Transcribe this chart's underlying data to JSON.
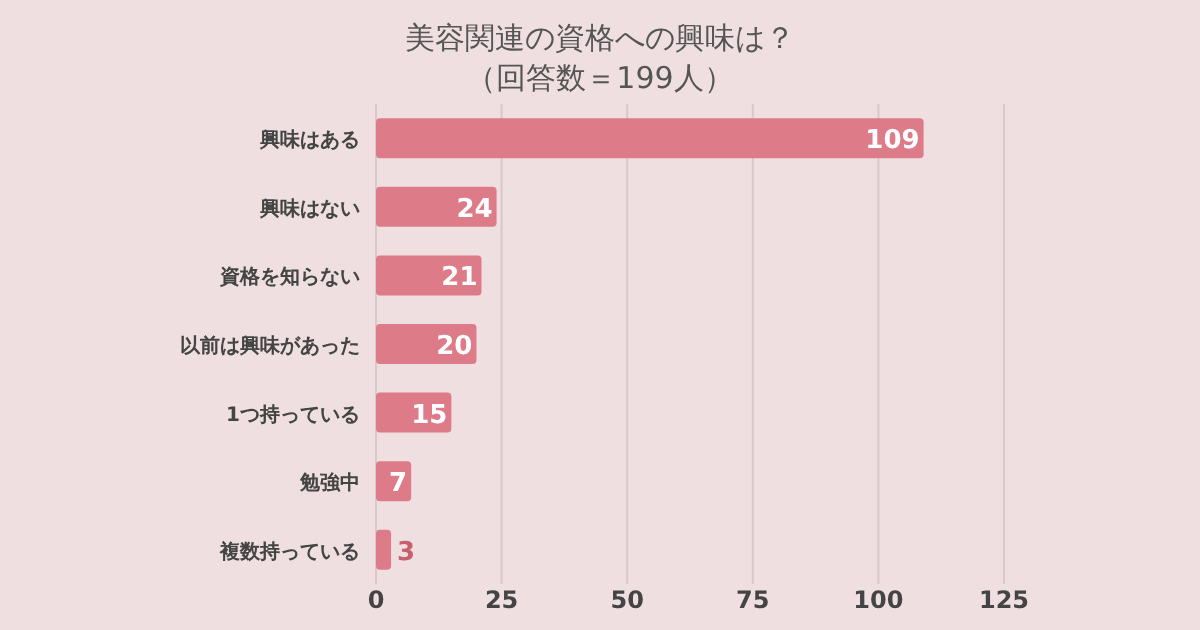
{
  "chart_data": {
    "type": "bar",
    "orientation": "horizontal",
    "title": "美容関連の資格への興味は？",
    "subtitle": "（回答数＝199人）",
    "categories": [
      "興味はある",
      "興味はない",
      "資格を知らない",
      "以前は興味があった",
      "1つ持っている",
      "勉強中",
      "複数持っている"
    ],
    "values": [
      109,
      24,
      21,
      20,
      15,
      7,
      3
    ],
    "color": "#dd7b88",
    "xlim": [
      0,
      125
    ],
    "xticks": [
      0,
      25,
      50,
      75,
      100,
      125
    ],
    "grid": "x",
    "data_labels": true
  }
}
